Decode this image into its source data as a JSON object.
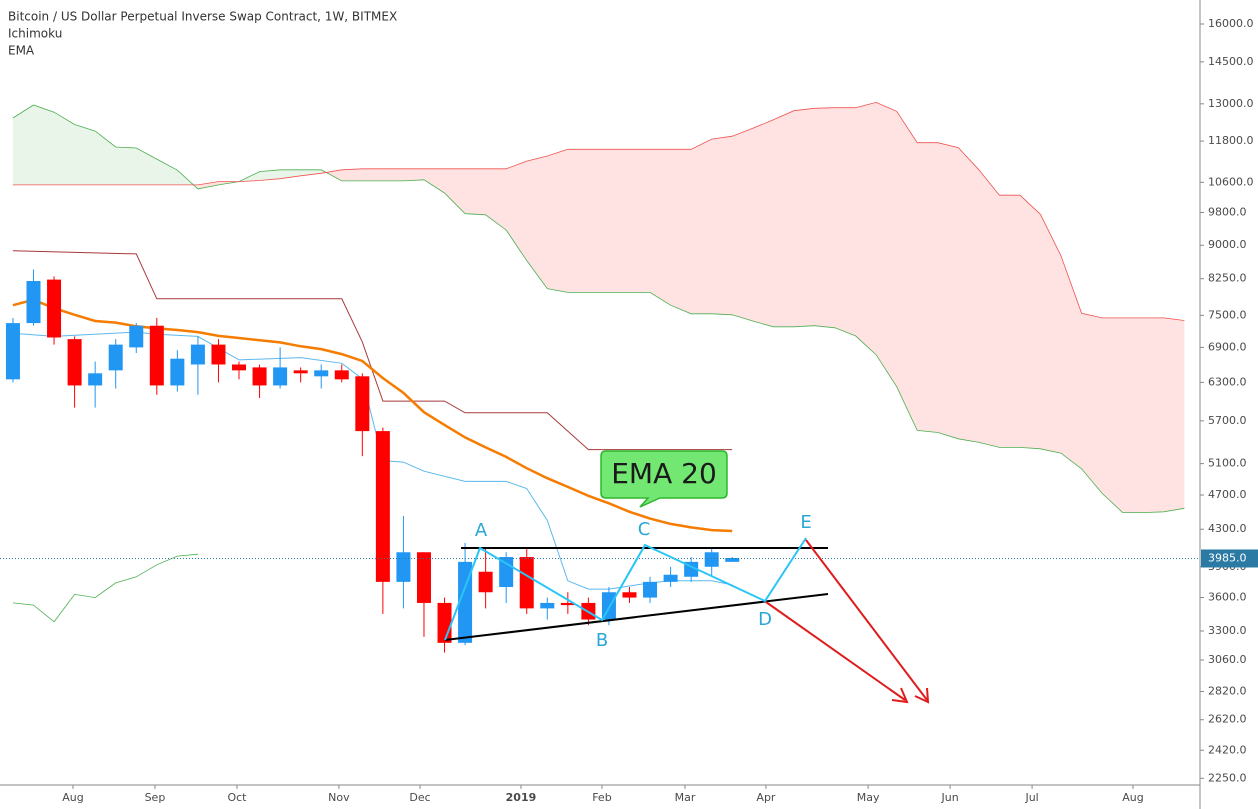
{
  "header": {
    "title": "Bitcoin / US Dollar Perpetual Inverse Swap Contract, 1W, BITMEX",
    "indicators": [
      "Ichimoku",
      "EMA"
    ]
  },
  "chart_data": {
    "type": "candlestick",
    "log_scale": true,
    "up_color": "#2196f3",
    "down_color": "#ff0000",
    "x": [
      0,
      1,
      2,
      3,
      4,
      5,
      6,
      7,
      8,
      9,
      10,
      11,
      12,
      13,
      14,
      15,
      16,
      17,
      18,
      19,
      20,
      21,
      22,
      23,
      24,
      25,
      26,
      27,
      28,
      29,
      30,
      31,
      32,
      33,
      34,
      35
    ],
    "open": [
      6350,
      7350,
      8230,
      7050,
      6250,
      6500,
      6900,
      7300,
      6250,
      6600,
      6950,
      6600,
      6550,
      6250,
      6500,
      6400,
      6500,
      6400,
      5550,
      3750,
      4050,
      3550,
      3200,
      3850,
      3700,
      4000,
      3500,
      3550,
      3550,
      3400,
      3650,
      3600,
      3750,
      3800,
      3900,
      3950
    ],
    "high": [
      7450,
      8450,
      8300,
      7100,
      6650,
      7050,
      7350,
      7450,
      6850,
      7100,
      7050,
      6650,
      6600,
      6900,
      6550,
      6600,
      6600,
      6450,
      5600,
      4450,
      4050,
      3600,
      4150,
      4100,
      4050,
      4100,
      3600,
      3650,
      3600,
      3700,
      3700,
      3800,
      3900,
      4000,
      4100,
      4000
    ],
    "low": [
      6300,
      7300,
      6950,
      5900,
      5900,
      6200,
      6800,
      6100,
      6150,
      6100,
      6300,
      6350,
      6050,
      6200,
      6300,
      6200,
      6300,
      5200,
      3450,
      3500,
      3250,
      3120,
      3180,
      3500,
      3550,
      3450,
      3400,
      3450,
      3350,
      3350,
      3550,
      3550,
      3700,
      3750,
      3800,
      3950
    ],
    "close": [
      7350,
      8200,
      7080,
      6250,
      6450,
      6950,
      7300,
      6250,
      6700,
      6950,
      6600,
      6500,
      6250,
      6550,
      6450,
      6500,
      6350,
      5550,
      3750,
      4050,
      3550,
      3200,
      3950,
      3650,
      4000,
      3500,
      3550,
      3530,
      3400,
      3650,
      3600,
      3750,
      3820,
      3950,
      4050,
      3990
    ],
    "xlim": [
      -0.63,
      57.76
    ],
    "xticks": [
      {
        "value": 2.92,
        "label": "Aug"
      },
      {
        "value": 6.91,
        "label": "Sep"
      },
      {
        "value": 10.9,
        "label": "Oct"
      },
      {
        "value": 15.86,
        "label": "Nov"
      },
      {
        "value": 19.81,
        "label": "Dec"
      },
      {
        "value": 24.72,
        "label": "2019"
      },
      {
        "value": 28.66,
        "label": "Feb"
      },
      {
        "value": 32.7,
        "label": "Mar"
      },
      {
        "value": 36.64,
        "label": "Apr"
      },
      {
        "value": 41.61,
        "label": "May"
      },
      {
        "value": 45.6,
        "label": "Jun"
      },
      {
        "value": 49.59,
        "label": "Jul"
      },
      {
        "value": 54.5,
        "label": "Aug"
      }
    ],
    "ylim": [
      2211,
      17030
    ],
    "yticks": [
      {
        "value": 16000,
        "label": "16000.0"
      },
      {
        "value": 14500,
        "label": "14500.0"
      },
      {
        "value": 13000,
        "label": "13000.0"
      },
      {
        "value": 11800,
        "label": "11800.0"
      },
      {
        "value": 10600,
        "label": "10600.0"
      },
      {
        "value": 9800,
        "label": "9800.0"
      },
      {
        "value": 9000,
        "label": "9000.0"
      },
      {
        "value": 8250,
        "label": "8250.0"
      },
      {
        "value": 7500,
        "label": "7500.0"
      },
      {
        "value": 6900,
        "label": "6900.0"
      },
      {
        "value": 6300,
        "label": "6300.0"
      },
      {
        "value": 5700,
        "label": "5700.0"
      },
      {
        "value": 5100,
        "label": "5100.0"
      },
      {
        "value": 4700,
        "label": "4700.0"
      },
      {
        "value": 4300,
        "label": "4300.0"
      },
      {
        "value": 3900,
        "label": "3900.0"
      },
      {
        "value": 3600,
        "label": "3600.0"
      },
      {
        "value": 3300,
        "label": "3300.0"
      },
      {
        "value": 3060,
        "label": "3060.0"
      },
      {
        "value": 2820,
        "label": "2820.0"
      },
      {
        "value": 2620,
        "label": "2620.0"
      },
      {
        "value": 2420,
        "label": "2420.0"
      },
      {
        "value": 2250,
        "label": "2250.0"
      }
    ],
    "last_price": {
      "value": 3985,
      "label": "3985.0",
      "color": "#2b7aa3"
    },
    "overlays": {
      "senkou_a": {
        "color": "#4caf50",
        "fill_up": "rgba(76,175,80,0.13)",
        "fill_down": "rgba(255,82,82,0.17)",
        "x": [
          0,
          1,
          2,
          3,
          4,
          5,
          6,
          7,
          8,
          9,
          10,
          11,
          12,
          13,
          14,
          15,
          16,
          17,
          18,
          19,
          20,
          21,
          22,
          23,
          24,
          25,
          26,
          27,
          28,
          29,
          30,
          31,
          32,
          33,
          34,
          35,
          36,
          37,
          38,
          39,
          40,
          41,
          42,
          43,
          44,
          45,
          46,
          47,
          48,
          49,
          50,
          51,
          52,
          53,
          54,
          55,
          56,
          57
        ],
        "values": [
          12530,
          12960,
          12720,
          12320,
          12110,
          11620,
          11590,
          11260,
          10940,
          10420,
          10530,
          10620,
          10900,
          10950,
          10950,
          10950,
          10640,
          10640,
          10640,
          10640,
          10670,
          10310,
          9770,
          9740,
          9360,
          8650,
          8040,
          7960,
          7960,
          7960,
          7960,
          7960,
          7700,
          7530,
          7530,
          7510,
          7390,
          7280,
          7280,
          7300,
          7260,
          7110,
          6770,
          6230,
          5560,
          5530,
          5440,
          5390,
          5320,
          5320,
          5300,
          5240,
          5030,
          4720,
          4490,
          4490,
          4500,
          4540
        ]
      },
      "senkou_b": {
        "color": "#ef5350",
        "x": [
          0,
          1,
          2,
          3,
          4,
          5,
          6,
          7,
          8,
          9,
          10,
          11,
          12,
          13,
          14,
          15,
          16,
          17,
          18,
          19,
          20,
          21,
          22,
          23,
          24,
          25,
          26,
          27,
          28,
          29,
          30,
          31,
          32,
          33,
          34,
          35,
          36,
          37,
          38,
          39,
          40,
          41,
          42,
          43,
          44,
          45,
          46,
          47,
          48,
          49,
          50,
          51,
          52,
          53,
          54,
          55,
          56,
          57
        ],
        "values": [
          10530,
          10530,
          10530,
          10530,
          10530,
          10530,
          10530,
          10530,
          10530,
          10530,
          10620,
          10620,
          10650,
          10700,
          10780,
          10850,
          10950,
          10980,
          10980,
          10980,
          10980,
          10980,
          10980,
          10980,
          10980,
          11200,
          11350,
          11550,
          11550,
          11550,
          11550,
          11550,
          11550,
          11550,
          11860,
          11950,
          12200,
          12470,
          12770,
          12850,
          12870,
          12870,
          13050,
          12750,
          11750,
          11750,
          11600,
          10950,
          10250,
          10250,
          9750,
          8750,
          7540,
          7450,
          7450,
          7450,
          7450,
          7400
        ]
      },
      "kijun": {
        "color": "#a83a3a",
        "x": [
          0,
          6,
          7,
          16,
          17,
          18,
          21,
          22,
          26,
          28,
          35
        ],
        "values": [
          8870,
          8800,
          7830,
          7830,
          7000,
          6000,
          6000,
          5820,
          5820,
          5290,
          5290
        ]
      },
      "tenkan": {
        "color": "#5cb8ee",
        "x": [
          0,
          2,
          6,
          7,
          9,
          11,
          14,
          16,
          17,
          18,
          19,
          20,
          22,
          24,
          25,
          26,
          27,
          28,
          29,
          30,
          31,
          32,
          34,
          35
        ],
        "values": [
          7160,
          7100,
          7180,
          7140,
          7100,
          6680,
          6720,
          6620,
          6360,
          5140,
          5120,
          5000,
          4870,
          4870,
          4780,
          4400,
          3760,
          3680,
          3680,
          3710,
          3740,
          3760,
          3760,
          3720
        ]
      },
      "lagging": {
        "color": "#4caf50",
        "x": [
          0,
          1,
          2,
          3,
          4,
          5,
          6,
          7,
          8,
          9
        ],
        "values": [
          3550,
          3530,
          3380,
          3630,
          3600,
          3740,
          3800,
          3920,
          4010,
          4030
        ]
      },
      "ema": {
        "color": "#f57c00",
        "x": [
          0,
          1,
          2,
          3,
          4,
          5,
          6,
          7,
          8,
          9,
          10,
          11,
          12,
          13,
          14,
          15,
          16,
          17,
          18,
          19,
          20,
          21,
          22,
          23,
          24,
          25,
          26,
          27,
          28,
          29,
          30,
          31,
          32,
          33,
          34,
          35
        ],
        "values": [
          7700,
          7810,
          7640,
          7510,
          7390,
          7360,
          7290,
          7250,
          7220,
          7180,
          7110,
          7070,
          7030,
          6990,
          6920,
          6870,
          6780,
          6660,
          6370,
          6130,
          5830,
          5640,
          5460,
          5320,
          5190,
          5040,
          4910,
          4800,
          4690,
          4600,
          4500,
          4420,
          4360,
          4320,
          4290,
          4280
        ]
      }
    },
    "annotations": {
      "points": [
        "A",
        "B",
        "C",
        "D",
        "E"
      ],
      "callout": "EMA 20"
    }
  }
}
